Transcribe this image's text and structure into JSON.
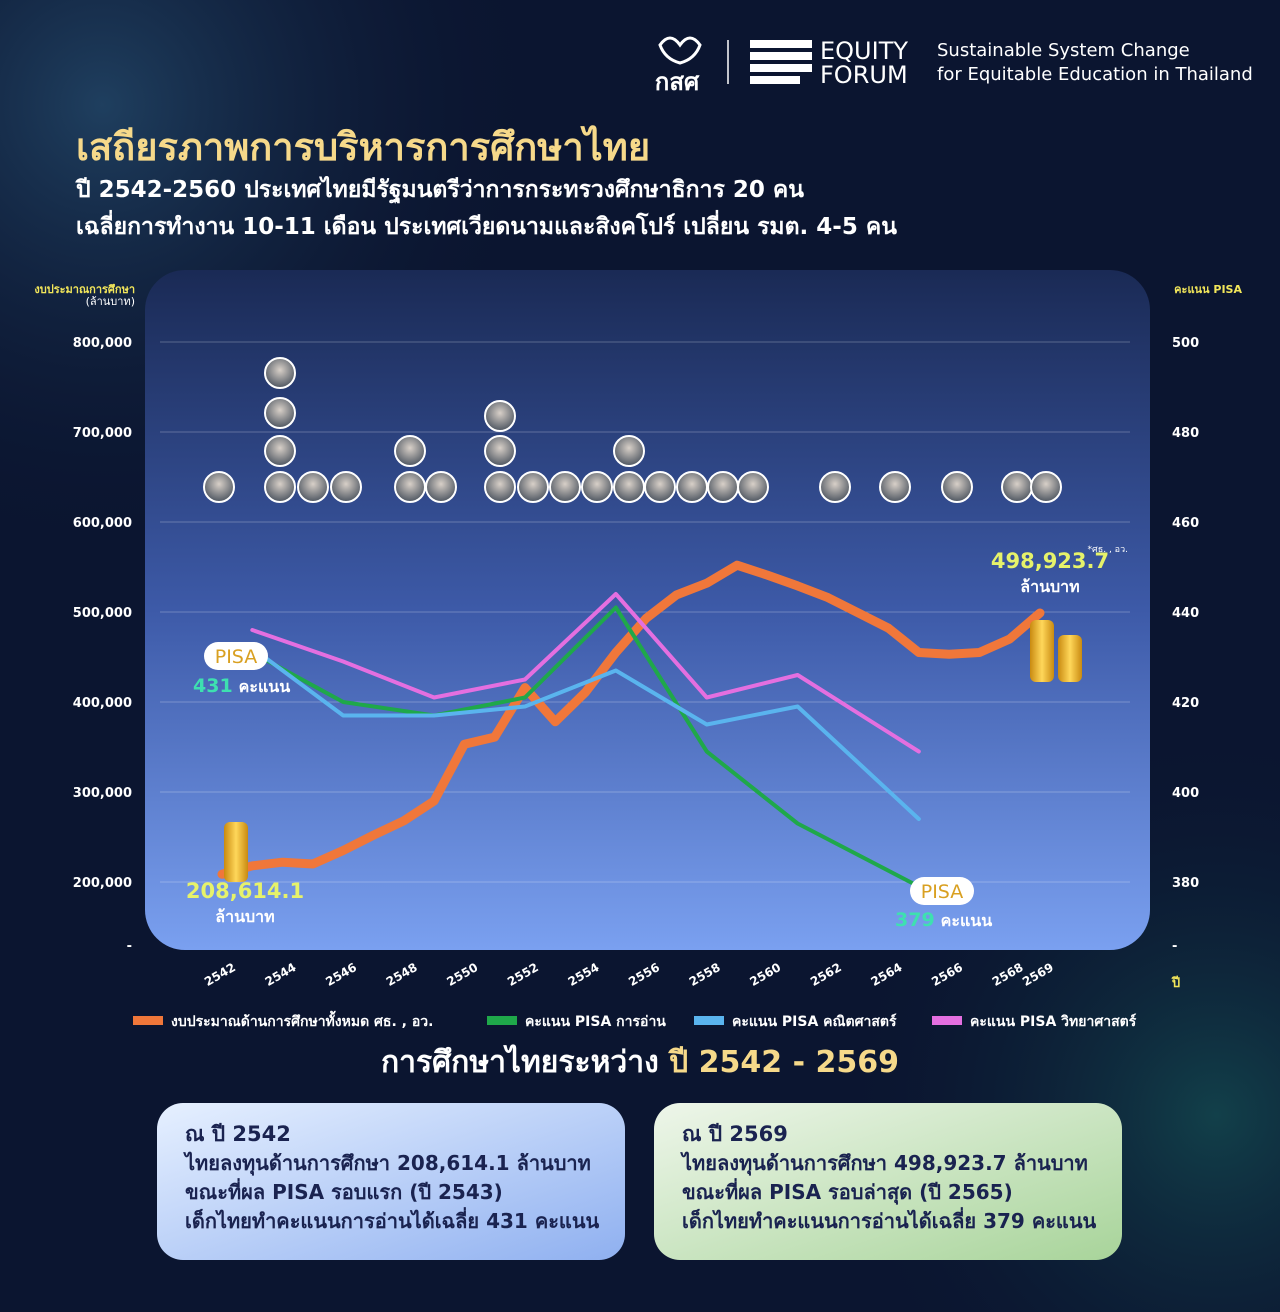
{
  "header": {
    "logo_text": "กสศ",
    "brand": [
      "EQUITY",
      "FORUM"
    ],
    "tagline": [
      "Sustainable System Change",
      "for Equitable Education in Thailand"
    ],
    "title": "เสถียรภาพการบริหารการศึกษาไทย",
    "subtitle": [
      "ปี 2542-2560 ประเทศไทยมีรัฐมนตรีว่าการกระทรวงศึกษาธิการ 20 คน",
      "เฉลี่ยการทำงาน 10-11 เดือน ประเทศเวียดนามและสิงคโปร์ เปลี่ยน รมต. 4-5 คน"
    ]
  },
  "chart_data": {
    "type": "line",
    "y_label": [
      "งบประมาณการศึกษา",
      "(ล้านบาท)"
    ],
    "y2_label": "คะแนน PISA",
    "x_label": "ปี",
    "xlim": [
      2542,
      2569
    ],
    "xticks": [
      2542,
      2544,
      2546,
      2548,
      2550,
      2552,
      2554,
      2556,
      2558,
      2560,
      2562,
      2564,
      2566,
      2568,
      2569
    ],
    "ylim": [
      130000,
      800000
    ],
    "yticks": [
      {
        "value": 130000,
        "label": "-"
      },
      {
        "value": 200000,
        "label": "200,000"
      },
      {
        "value": 300000,
        "label": "300,000"
      },
      {
        "value": 400000,
        "label": "400,000"
      },
      {
        "value": 500000,
        "label": "500,000"
      },
      {
        "value": 600000,
        "label": "600,000"
      },
      {
        "value": 700000,
        "label": "700,000"
      },
      {
        "value": 800000,
        "label": "800,000"
      }
    ],
    "y2lim": [
      366,
      500
    ],
    "y2ticks": [
      {
        "value": 366,
        "label": "-"
      },
      380,
      400,
      420,
      440,
      460,
      480,
      500
    ],
    "grid": true,
    "source_note": "*ศธ. , อว.",
    "value_unit": "ล้านบาท",
    "badge": "PISA",
    "score_unit": "คะแนน",
    "series": [
      {
        "name": "งบประมาณด้านการศึกษาทั้งหมด ศธ. , อว.",
        "color": "#f0773a",
        "axis": "y",
        "x": [
          2542,
          2543,
          2544,
          2545,
          2546,
          2547,
          2548,
          2549,
          2550,
          2551,
          2552,
          2553,
          2554,
          2555,
          2556,
          2557,
          2558,
          2559,
          2560,
          2561,
          2562,
          2563,
          2564,
          2565,
          2566,
          2567,
          2568,
          2569
        ],
        "values": [
          208614.1,
          218000,
          222000,
          220000,
          235000,
          252000,
          268000,
          290000,
          353000,
          361000,
          416000,
          378000,
          411000,
          455000,
          493000,
          519000,
          532000,
          552000,
          541000,
          529000,
          516000,
          499000,
          482000,
          455000,
          453000,
          455000,
          470000,
          498923.7
        ],
        "value_labels": [
          "208,614.1",
          null,
          null,
          null,
          null,
          null,
          null,
          null,
          null,
          null,
          null,
          null,
          null,
          null,
          null,
          null,
          null,
          null,
          null,
          null,
          null,
          null,
          null,
          null,
          null,
          null,
          null,
          "498,923.7"
        ]
      },
      {
        "name": "คะแนน PISA การอ่าน",
        "color": "#1fa84a",
        "axis": "y2",
        "x": [
          2543,
          2546,
          2549,
          2552,
          2555,
          2558,
          2561,
          2565
        ],
        "values": [
          431,
          420,
          417,
          421,
          441,
          409,
          393,
          379
        ]
      },
      {
        "name": "คะแนน PISA คณิตศาสตร์",
        "color": "#5ab4ee",
        "axis": "y2",
        "x": [
          2543,
          2546,
          2549,
          2552,
          2555,
          2558,
          2561,
          2565
        ],
        "values": [
          432,
          417,
          417,
          419,
          427,
          415,
          419,
          394
        ]
      },
      {
        "name": "คะแนน PISA วิทยาศาสตร์",
        "color": "#e46fe0",
        "axis": "y2",
        "x": [
          2543,
          2546,
          2549,
          2552,
          2555,
          2558,
          2561,
          2565
        ],
        "values": [
          436,
          429,
          421,
          425,
          444,
          421,
          426,
          409
        ]
      }
    ]
  },
  "summary": {
    "heading": "การศึกษาไทยระหว่าง ",
    "heading_years": "ปี 2542 - 2569",
    "cards": [
      {
        "title": "ณ ปี 2542",
        "lines": [
          "ไทยลงทุนด้านการศึกษา 208,614.1 ล้านบาท",
          "ขณะที่ผล PISA รอบแรก (ปี 2543)",
          "เด็กไทยทำคะแนนการอ่านได้เฉลี่ย 431 คะแนน"
        ]
      },
      {
        "title": "ณ ปี 2569",
        "lines": [
          "ไทยลงทุนด้านการศึกษา 498,923.7 ล้านบาท",
          "ขณะที่ผล PISA รอบล่าสุด (ปี 2565)",
          "เด็กไทยทำคะแนนการอ่านได้เฉลี่ย 379 คะแนน"
        ]
      }
    ]
  }
}
